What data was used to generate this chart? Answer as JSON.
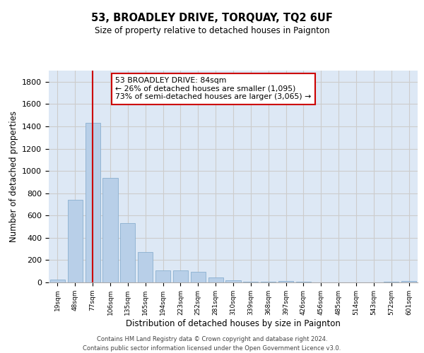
{
  "title": "53, BROADLEY DRIVE, TORQUAY, TQ2 6UF",
  "subtitle": "Size of property relative to detached houses in Paignton",
  "xlabel": "Distribution of detached houses by size in Paignton",
  "ylabel": "Number of detached properties",
  "categories": [
    "19sqm",
    "48sqm",
    "77sqm",
    "106sqm",
    "135sqm",
    "165sqm",
    "194sqm",
    "223sqm",
    "252sqm",
    "281sqm",
    "310sqm",
    "339sqm",
    "368sqm",
    "397sqm",
    "426sqm",
    "456sqm",
    "485sqm",
    "514sqm",
    "543sqm",
    "572sqm",
    "601sqm"
  ],
  "values": [
    25,
    740,
    1430,
    940,
    530,
    270,
    110,
    110,
    95,
    42,
    20,
    5,
    5,
    12,
    5,
    2,
    2,
    2,
    2,
    5,
    15
  ],
  "bar_color": "#b8cfe8",
  "bar_edge_color": "#8aafd0",
  "grid_color": "#cccccc",
  "bg_color": "#dde8f5",
  "vline_color": "#cc0000",
  "annotation_text": "53 BROADLEY DRIVE: 84sqm\n← 26% of detached houses are smaller (1,095)\n73% of semi-detached houses are larger (3,065) →",
  "annotation_box_color": "#ffffff",
  "annotation_box_edge": "#cc0000",
  "footer": "Contains HM Land Registry data © Crown copyright and database right 2024.\nContains public sector information licensed under the Open Government Licence v3.0.",
  "ylim": [
    0,
    1900
  ],
  "yticks": [
    0,
    200,
    400,
    600,
    800,
    1000,
    1200,
    1400,
    1600,
    1800
  ]
}
